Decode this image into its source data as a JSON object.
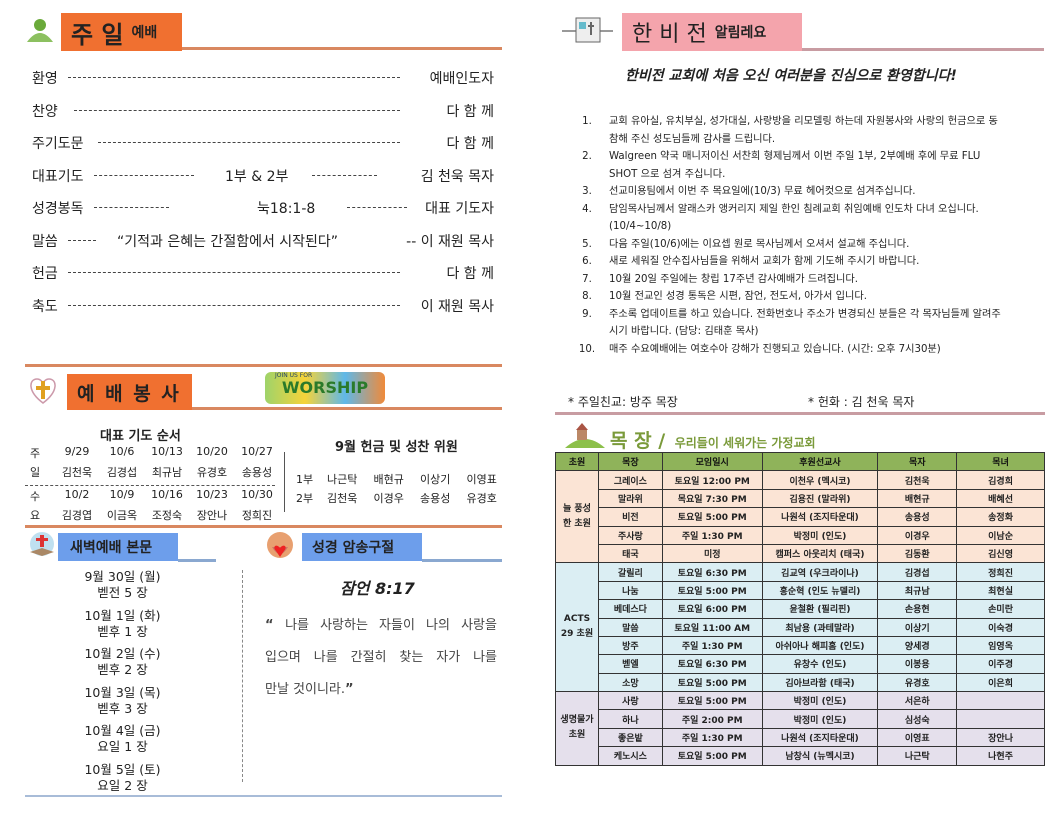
{
  "sunday": {
    "title_big": "주 일",
    "title_small": "예배",
    "icon": "praying-person-icon",
    "order": [
      {
        "item": "환영",
        "middle": "",
        "person": "예배인도자"
      },
      {
        "item": "찬양",
        "middle": "",
        "person": "다 함 께"
      },
      {
        "item": "주기도문",
        "middle": "",
        "person": "다 함 께"
      },
      {
        "item": "대표기도",
        "middle": "1부 & 2부",
        "person": "김 천욱 목자"
      },
      {
        "item": "성경봉독",
        "middle": "눅18:1-8",
        "person": "대표 기도자"
      },
      {
        "item": "말씀",
        "middle": "“기적과 은혜는 간절함에서 시작된다”",
        "person": "-- 이 재원 목사"
      },
      {
        "item": "헌금",
        "middle": "",
        "person": "다 함 께"
      },
      {
        "item": "축도",
        "middle": "",
        "person": "이 재원 목사"
      }
    ]
  },
  "service": {
    "title": "예 배 봉 사",
    "icon": "bible-cross-heart-icon",
    "logo_small": "JOIN US FOR",
    "logo_big": "WORSHIP",
    "prayer_title": "대표 기도 순서",
    "sunday_label": [
      "주",
      "일"
    ],
    "sunday_dates": [
      "9/29",
      "10/6",
      "10/13",
      "10/20",
      "10/27"
    ],
    "sunday_names": [
      "김천욱",
      "김경섭",
      "최규남",
      "유경호",
      "송용성"
    ],
    "wed_label": [
      "수",
      "요"
    ],
    "wed_dates": [
      "10/2",
      "10/9",
      "10/16",
      "10/23",
      "10/30"
    ],
    "wed_names": [
      "김경엽",
      "이금옥",
      "조정숙",
      "장안나",
      "정희진"
    ],
    "offering_title": "9월 헌금 및 성찬 위원",
    "offering": [
      {
        "part": "1부",
        "names": [
          "나근탁",
          "배현규",
          "이상기",
          "이영표"
        ]
      },
      {
        "part": "2부",
        "names": [
          "김천욱",
          "이경우",
          "송용성",
          "유경호"
        ]
      }
    ]
  },
  "dawn": {
    "title": "새벽예배 본문",
    "icon": "open-bible-icon",
    "items": [
      {
        "date": "9월 30일 (월)",
        "text": "벧전 5 장"
      },
      {
        "date": "10월 1일 (화)",
        "text": "벧후 1 장"
      },
      {
        "date": "10월 2일 (수)",
        "text": "벧후 2 장"
      },
      {
        "date": "10월 3일 (목)",
        "text": "벧후 3 장"
      },
      {
        "date": "10월 4일 (금)",
        "text": "요일 1 장"
      },
      {
        "date": "10월 5일 (토)",
        "text": "요일 2 장"
      }
    ]
  },
  "memory": {
    "title": "성경 암송구절",
    "icon": "bearded-man-heart-icon",
    "ref": "잠언 8:17",
    "verse_l1": "나를 사랑하는 자들이 나의 사랑을",
    "verse_l2": "입으며 나를 간절히 찾는 자가 나를",
    "verse_l3": "만날 것이니라."
  },
  "news": {
    "title_big": "한 비 전",
    "title_small": "알림레요",
    "icon": "newspaper-icon",
    "welcome": "한비전 교회에 처음 오신 여러분을 진심으로 환영합니다!",
    "items": [
      {
        "n": "1.",
        "text": "교회 유아실, 유치부실, 성가대실, 사랑방을 리모델링 하는데 자원봉사와 사랑의 헌금으로 동참해 주신 성도님들께 감사를 드립니다."
      },
      {
        "n": "2.",
        "text": "Walgreen 약국 매니저이신 서찬희 형제님께서 이번 주일 1부, 2부예배 후에 무료 FLU SHOT 으로 섬겨 주십니다."
      },
      {
        "n": "3.",
        "text": "선교미용팀에서 이번 주 목요일에(10/3) 무료 헤어컷으로 섬겨주십니다."
      },
      {
        "n": "4.",
        "text": "담임목사님께서 알래스카 앵커리지 제일 한인 침례교회 취임예배 인도차 다녀 오십니다. (10/4~10/8)"
      },
      {
        "n": "5.",
        "text": "다음 주일(10/6)에는 이요셉 원로 목사님께서 오셔서 설교해 주십니다."
      },
      {
        "n": "6.",
        "text": "새로 세워질 안수집사님들을 위해서 교회가 함께 기도해 주시기 바랍니다."
      },
      {
        "n": "7.",
        "text": "10월 20일 주일에는 창립 17주년 감사예배가 드려집니다."
      },
      {
        "n": "8.",
        "text": "10월 전교인 성경 통독은 시편, 잠언, 전도서, 아가서 입니다."
      },
      {
        "n": "9.",
        "text": "주소록 업데이트를 하고 있습니다. 전화번호나 주소가 변경되신 분들은 각 목자님들께 알려주시기 바랍니다. (담당: 김태훈 목사)"
      },
      {
        "n": "10.",
        "text": "매주 수요예배에는 여호수아 강해가 진행되고 있습니다. (시간: 오후 7시30분)"
      }
    ],
    "fellowship": "* 주일친교: 방주 목장",
    "flowers": "* 헌화 : 김 천욱 목자"
  },
  "mokjang": {
    "title_big": "목 장 /",
    "title_small": "우리들이 세워가는 가정교회",
    "icon": "church-hill-icon",
    "headers": [
      "초원",
      "목장",
      "모임일시",
      "후원선교사",
      "목자",
      "목녀"
    ],
    "groups": [
      {
        "name": "늘 풍성한 초원",
        "rows": [
          [
            "그레이스",
            "토요일 12:00 PM",
            "이천우 (멕시코)",
            "김천욱",
            "김경희"
          ],
          [
            "말라위",
            "목요일 7:30 PM",
            "김용진 (말라위)",
            "배현규",
            "배혜선"
          ],
          [
            "비전",
            "토요일 5:00 PM",
            "나원석 (조지타운대)",
            "송용성",
            "송정화"
          ],
          [
            "주사랑",
            "주일 1:30 PM",
            "박정미 (인도)",
            "이경우",
            "이남순"
          ],
          [
            "태국",
            "미정",
            "캠퍼스 아웃리치 (태국)",
            "김동환",
            "김신영"
          ]
        ]
      },
      {
        "name": "ACTS 29 초원",
        "rows": [
          [
            "갈릴리",
            "토요일 6:30 PM",
            "김교역 (우크라이나)",
            "김경섭",
            "정희진"
          ],
          [
            "나눔",
            "토요일 5:00 PM",
            "홍순혁 (인도 뉴델리)",
            "최규남",
            "최현실"
          ],
          [
            "베데스다",
            "토요일 6:00 PM",
            "윤철환 (필리핀)",
            "손용현",
            "손미란"
          ],
          [
            "말씀",
            "토요일 11:00 AM",
            "최남용 (과테말라)",
            "이상기",
            "이숙경"
          ],
          [
            "방주",
            "주일 1:30 PM",
            "아쉬아나 해피홈 (인도)",
            "양세경",
            "임영옥"
          ],
          [
            "벧엘",
            "토요일 6:30 PM",
            "유창수 (인도)",
            "이봉용",
            "이주경"
          ],
          [
            "소망",
            "토요일 5:00 PM",
            "김아브라함 (태국)",
            "유경호",
            "이은희"
          ]
        ]
      },
      {
        "name": "생명물가 초원",
        "rows": [
          [
            "사랑",
            "토요일 5:00 PM",
            "박정미 (인도)",
            "서은하",
            ""
          ],
          [
            "하나",
            "주일 2:00 PM",
            "박정미 (인도)",
            "심성숙",
            ""
          ],
          [
            "좋은밭",
            "주일 1:30 PM",
            "나원석 (조지타운대)",
            "이영표",
            "장안나"
          ],
          [
            "케노시스",
            "토요일 5:00 PM",
            "남창식 (뉴멕시코)",
            "나근탁",
            "나현주"
          ]
        ]
      }
    ]
  },
  "colors": {
    "orange": "#f07030",
    "orange_rule": "#d98860",
    "pink": "#f4a4ac",
    "blue": "#6d9eeb",
    "green_header": "#8fb35a"
  }
}
